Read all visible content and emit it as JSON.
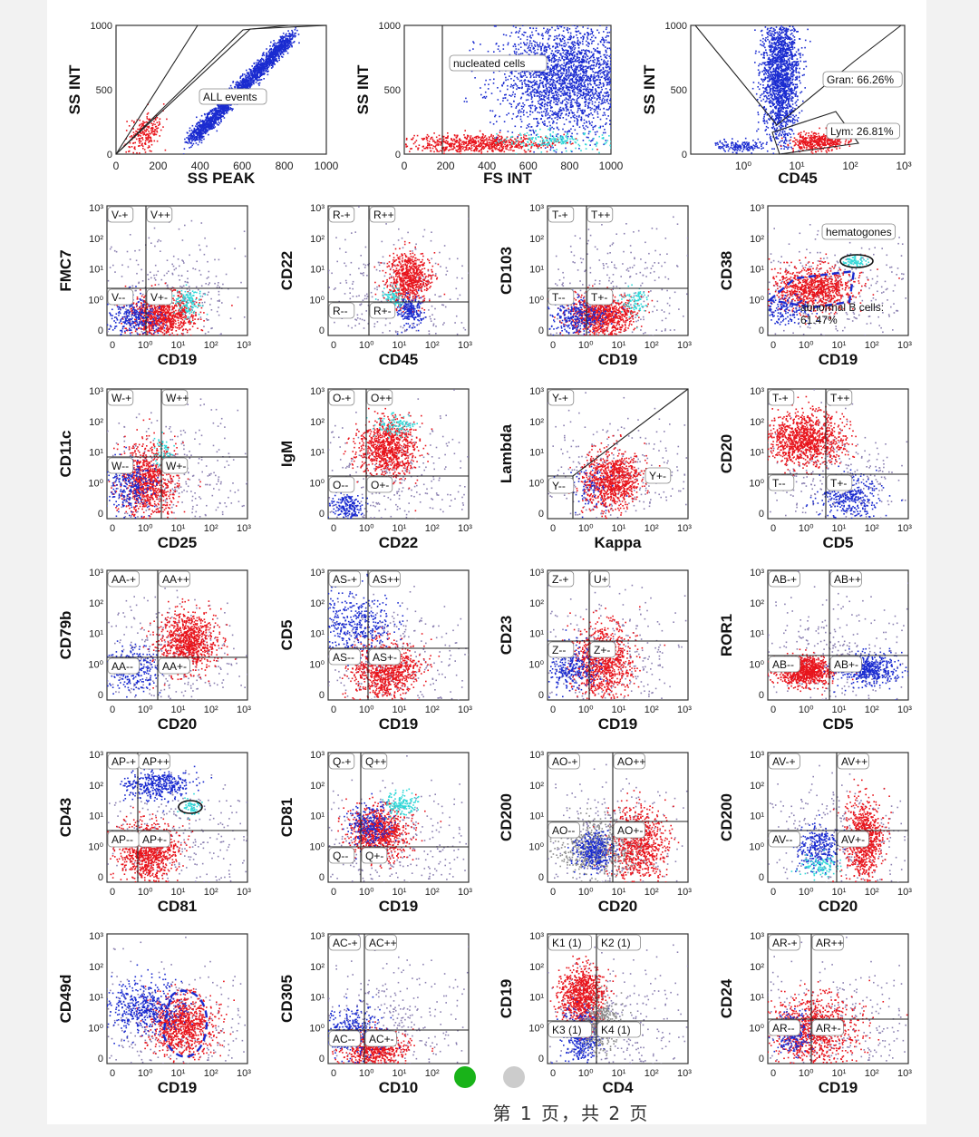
{
  "page": {
    "footer_text": "第 1 页，共 2 页",
    "dots": [
      {
        "color": "#19b319"
      },
      {
        "color": "#cccccc"
      }
    ]
  },
  "colors": {
    "abnormal_b": "#e8141c",
    "normal": "#1a2bd0",
    "hematogones": "#2fd8d8",
    "granulocytes": "#1a2bd0",
    "debris": "#8a7fb0",
    "gray_events": "#8c8c8c"
  },
  "tick_sets": {
    "lin": [
      "0",
      "200",
      "400",
      "600",
      "800",
      "1000"
    ],
    "lin_y": [
      "0",
      "500",
      "1000"
    ],
    "log_y": [
      "0",
      "10⁰",
      "10¹",
      "10²",
      "10³"
    ],
    "log_x": [
      "0",
      "10⁰",
      "10¹",
      "10²",
      "10³"
    ]
  },
  "chart_data": [
    {
      "type": "scatter",
      "xlabel": "SS PEAK",
      "ylabel": "SS INT",
      "scale": "linear",
      "xticks": [
        "0",
        "200",
        "400",
        "600",
        "800",
        "1000"
      ],
      "yticks": [
        "0",
        "500",
        "1000"
      ],
      "xlim": [
        0,
        1000
      ],
      "ylim": [
        0,
        1000
      ],
      "gates": [
        {
          "label": "ALL events"
        }
      ],
      "populations": [
        {
          "color": "granulocytes",
          "x": [
            300,
            1000
          ],
          "y": [
            300,
            1000
          ],
          "note": "diagonal"
        },
        {
          "color": "abnormal_b",
          "x": [
            0,
            120
          ],
          "y": [
            0,
            120
          ]
        }
      ]
    },
    {
      "type": "scatter",
      "xlabel": "FS INT",
      "ylabel": "SS INT",
      "scale": "linear",
      "xticks": [
        "0",
        "200",
        "400",
        "600",
        "800",
        "1000"
      ],
      "yticks": [
        "0",
        "500",
        "1000"
      ],
      "xlim": [
        0,
        1000
      ],
      "ylim": [
        0,
        1000
      ],
      "gates": [
        {
          "label": "nucleated cells"
        }
      ],
      "populations": [
        {
          "color": "granulocytes",
          "x": [
            650,
            950
          ],
          "y": [
            400,
            1000
          ]
        },
        {
          "color": "abnormal_b",
          "x": [
            250,
            600
          ],
          "y": [
            20,
            120
          ]
        }
      ]
    },
    {
      "type": "scatter",
      "xlabel": "CD45",
      "ylabel": "SS INT",
      "scale": "log-x",
      "xticks": [
        "10⁰",
        "10¹",
        "10²",
        "10³"
      ],
      "yticks": [
        "0",
        "500",
        "1000"
      ],
      "ylim": [
        0,
        1000
      ],
      "gates": [
        {
          "label": "Gran: 66.26%"
        },
        {
          "label": "Lym: 26.81%"
        }
      ],
      "populations": [
        {
          "color": "granulocytes",
          "x": [
            3,
            10
          ],
          "y": [
            350,
            1000
          ]
        },
        {
          "color": "abnormal_b",
          "x": [
            10,
            40
          ],
          "y": [
            20,
            120
          ]
        }
      ]
    },
    {
      "type": "scatter",
      "xlabel": "CD19",
      "ylabel": "FMC7",
      "scale": "log",
      "quadrants": [
        "V-+",
        "V++",
        "V--",
        "V+-"
      ]
    },
    {
      "type": "scatter",
      "xlabel": "CD45",
      "ylabel": "CD22",
      "scale": "log",
      "quadrants": [
        "R-+",
        "R++",
        "R--",
        "R+-"
      ]
    },
    {
      "type": "scatter",
      "xlabel": "CD19",
      "ylabel": "CD103",
      "scale": "log",
      "quadrants": [
        "T-+",
        "T++",
        "T--",
        "T+-"
      ]
    },
    {
      "type": "scatter",
      "xlabel": "CD19",
      "ylabel": "CD38",
      "scale": "log",
      "gates": [
        {
          "label": "hematogones"
        },
        {
          "label": "abnormal B cells: 61.47%"
        }
      ]
    },
    {
      "type": "scatter",
      "xlabel": "CD25",
      "ylabel": "CD11c",
      "scale": "log",
      "quadrants": [
        "W-+",
        "W++",
        "W--",
        "W+-"
      ]
    },
    {
      "type": "scatter",
      "xlabel": "CD22",
      "ylabel": "IgM",
      "scale": "log",
      "quadrants": [
        "O-+",
        "O++",
        "O--",
        "O+-"
      ]
    },
    {
      "type": "scatter",
      "xlabel": "Kappa",
      "ylabel": "Lambda",
      "scale": "log",
      "quadrants": [
        "Y-+",
        "Y--",
        "Y+-"
      ]
    },
    {
      "type": "scatter",
      "xlabel": "CD5",
      "ylabel": "CD20",
      "scale": "log",
      "quadrants": [
        "T-+",
        "T++",
        "T--",
        "T+-"
      ]
    },
    {
      "type": "scatter",
      "xlabel": "CD20",
      "ylabel": "CD79b",
      "scale": "log",
      "quadrants": [
        "AA-+",
        "AA++",
        "AA--",
        "AA+-"
      ]
    },
    {
      "type": "scatter",
      "xlabel": "CD19",
      "ylabel": "CD5",
      "scale": "log",
      "quadrants": [
        "AS-+",
        "AS++",
        "AS--",
        "AS+-"
      ]
    },
    {
      "type": "scatter",
      "xlabel": "CD19",
      "ylabel": "CD23",
      "scale": "log",
      "quadrants": [
        "Z-+",
        "U+",
        "Z--",
        "Z+-"
      ]
    },
    {
      "type": "scatter",
      "xlabel": "CD5",
      "ylabel": "ROR1",
      "scale": "log",
      "quadrants": [
        "AB-+",
        "AB++",
        "AB--",
        "AB+-"
      ]
    },
    {
      "type": "scatter",
      "xlabel": "CD81",
      "ylabel": "CD43",
      "scale": "log",
      "quadrants": [
        "AP-+",
        "AP++",
        "AP--",
        "AP+-"
      ]
    },
    {
      "type": "scatter",
      "xlabel": "CD19",
      "ylabel": "CD81",
      "scale": "log",
      "quadrants": [
        "Q-+",
        "Q++",
        "Q--",
        "Q+-"
      ]
    },
    {
      "type": "scatter",
      "xlabel": "CD20",
      "ylabel": "CD200",
      "scale": "log",
      "quadrants": [
        "AO-+",
        "AO++",
        "AO--",
        "AO+-"
      ]
    },
    {
      "type": "scatter",
      "xlabel": "CD20",
      "ylabel": "CD200",
      "scale": "log",
      "quadrants": [
        "AV-+",
        "AV++",
        "AV--",
        "AV+-"
      ]
    },
    {
      "type": "scatter",
      "xlabel": "CD19",
      "ylabel": "CD49d",
      "scale": "log"
    },
    {
      "type": "scatter",
      "xlabel": "CD10",
      "ylabel": "CD305",
      "scale": "log",
      "quadrants": [
        "AC-+",
        "AC++",
        "AC--",
        "AC+-"
      ]
    },
    {
      "type": "scatter",
      "xlabel": "CD4",
      "ylabel": "CD19",
      "scale": "log",
      "quadrants": [
        "K1 (1)",
        "K2 (1)",
        "K3 (1)",
        "K4 (1)"
      ]
    },
    {
      "type": "scatter",
      "xlabel": "CD19",
      "ylabel": "CD24",
      "scale": "log",
      "quadrants": [
        "AR-+",
        "AR++",
        "AR--",
        "AR+-"
      ]
    }
  ]
}
